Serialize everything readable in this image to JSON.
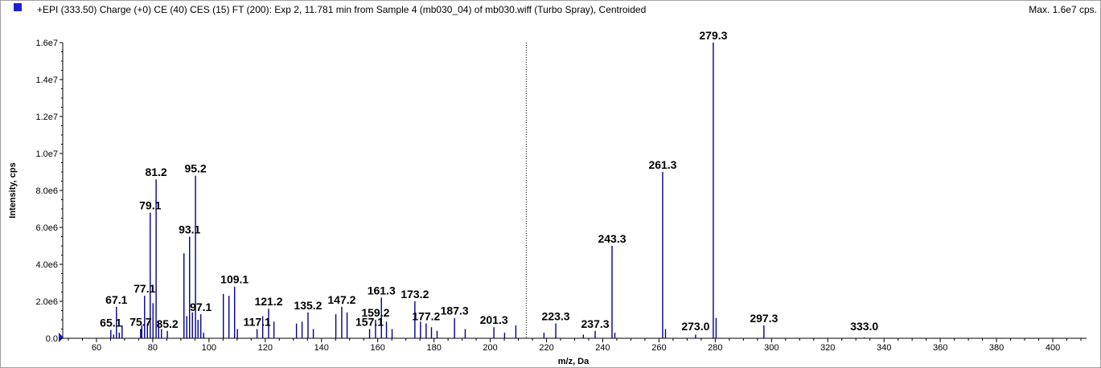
{
  "header": {
    "title": "+EPI (333.50) Charge (+0) CE (40) CES (15) FT (200): Exp 2, 11.781 min from Sample 4 (mb030_04) of mb030.wiff (Turbo Spray), Centroided",
    "max_label": "Max. 1.6e7 cps."
  },
  "colors": {
    "spectrum": "#00008b",
    "axis": "#000000",
    "marker": "#1f1fcf"
  },
  "chart_data": {
    "type": "bar",
    "mode": "centroided-spectrum",
    "xlabel": "m/z, Da",
    "ylabel": "Intensity, cps",
    "xlim": [
      48,
      412
    ],
    "ylim": [
      0,
      16000000
    ],
    "x_ticks": [
      60,
      80,
      100,
      120,
      140,
      160,
      180,
      200,
      220,
      240,
      260,
      280,
      300,
      320,
      340,
      360,
      380,
      400
    ],
    "y_ticks": [
      {
        "v": 0,
        "label": "0.0"
      },
      {
        "v": 2000000,
        "label": "2.0e6"
      },
      {
        "v": 4000000,
        "label": "4.0e6"
      },
      {
        "v": 6000000,
        "label": "6.0e6"
      },
      {
        "v": 8000000,
        "label": "8.0e6"
      },
      {
        "v": 10000000,
        "label": "1.0e7"
      },
      {
        "v": 12000000,
        "label": "1.2e7"
      },
      {
        "v": 14000000,
        "label": "1.4e7"
      },
      {
        "v": 16000000,
        "label": "1.6e7"
      }
    ],
    "precursor_marker_x": 212.8,
    "peaks": [
      {
        "x": 65.1,
        "y": 450000,
        "label": "65.1"
      },
      {
        "x": 66.1,
        "y": 200000
      },
      {
        "x": 67.1,
        "y": 1700000,
        "label": "67.1"
      },
      {
        "x": 68.1,
        "y": 300000
      },
      {
        "x": 69.1,
        "y": 700000
      },
      {
        "x": 75.7,
        "y": 500000,
        "label": "75.7"
      },
      {
        "x": 76.1,
        "y": 700000
      },
      {
        "x": 77.1,
        "y": 2300000,
        "label": "77.1"
      },
      {
        "x": 78.1,
        "y": 800000
      },
      {
        "x": 79.1,
        "y": 6800000,
        "label": "79.1"
      },
      {
        "x": 80.1,
        "y": 1900000
      },
      {
        "x": 81.2,
        "y": 8600000,
        "label": "81.2"
      },
      {
        "x": 82.1,
        "y": 900000
      },
      {
        "x": 83.1,
        "y": 500000
      },
      {
        "x": 85.2,
        "y": 400000,
        "label": "85.2"
      },
      {
        "x": 91.1,
        "y": 4600000
      },
      {
        "x": 92.1,
        "y": 1200000
      },
      {
        "x": 93.1,
        "y": 5500000,
        "label": "93.1"
      },
      {
        "x": 94.1,
        "y": 1400000
      },
      {
        "x": 95.2,
        "y": 8800000,
        "label": "95.2"
      },
      {
        "x": 96.1,
        "y": 1000000
      },
      {
        "x": 97.1,
        "y": 1300000,
        "label": "97.1"
      },
      {
        "x": 98.1,
        "y": 300000
      },
      {
        "x": 105.1,
        "y": 2400000
      },
      {
        "x": 107.1,
        "y": 2300000
      },
      {
        "x": 109.1,
        "y": 2800000,
        "label": "109.1"
      },
      {
        "x": 110.1,
        "y": 500000
      },
      {
        "x": 117.1,
        "y": 500000,
        "label": "117.1"
      },
      {
        "x": 119.1,
        "y": 1200000
      },
      {
        "x": 121.2,
        "y": 1600000,
        "label": "121.2"
      },
      {
        "x": 123.1,
        "y": 900000
      },
      {
        "x": 131.1,
        "y": 800000
      },
      {
        "x": 133.1,
        "y": 900000
      },
      {
        "x": 135.2,
        "y": 1400000,
        "label": "135.2"
      },
      {
        "x": 137.1,
        "y": 500000
      },
      {
        "x": 145.1,
        "y": 1300000
      },
      {
        "x": 147.2,
        "y": 1700000,
        "label": "147.2"
      },
      {
        "x": 149.1,
        "y": 1400000
      },
      {
        "x": 157.1,
        "y": 500000,
        "label": "157.1"
      },
      {
        "x": 159.2,
        "y": 1000000,
        "label": "159.2"
      },
      {
        "x": 161.3,
        "y": 2200000,
        "label": "161.3"
      },
      {
        "x": 163.1,
        "y": 900000
      },
      {
        "x": 165.1,
        "y": 500000
      },
      {
        "x": 173.2,
        "y": 2000000,
        "label": "173.2"
      },
      {
        "x": 175.2,
        "y": 900000
      },
      {
        "x": 177.2,
        "y": 800000,
        "label": "177.2"
      },
      {
        "x": 179.1,
        "y": 600000
      },
      {
        "x": 181.1,
        "y": 400000
      },
      {
        "x": 187.3,
        "y": 1100000,
        "label": "187.3"
      },
      {
        "x": 191.1,
        "y": 500000
      },
      {
        "x": 201.3,
        "y": 600000,
        "label": "201.3"
      },
      {
        "x": 205.1,
        "y": 300000
      },
      {
        "x": 209.1,
        "y": 700000
      },
      {
        "x": 219.1,
        "y": 300000
      },
      {
        "x": 223.3,
        "y": 800000,
        "label": "223.3"
      },
      {
        "x": 233.1,
        "y": 200000
      },
      {
        "x": 237.3,
        "y": 400000,
        "label": "237.3"
      },
      {
        "x": 243.3,
        "y": 5000000,
        "label": "243.3"
      },
      {
        "x": 244.3,
        "y": 300000
      },
      {
        "x": 261.3,
        "y": 9000000,
        "label": "261.3"
      },
      {
        "x": 262.3,
        "y": 500000
      },
      {
        "x": 273.0,
        "y": 200000,
        "label": "273.0"
      },
      {
        "x": 279.3,
        "y": 16000000,
        "label": "279.3"
      },
      {
        "x": 280.3,
        "y": 1100000
      },
      {
        "x": 297.3,
        "y": 700000,
        "label": "297.3"
      },
      {
        "x": 333.0,
        "y": 50000,
        "label": "333.0"
      }
    ]
  }
}
